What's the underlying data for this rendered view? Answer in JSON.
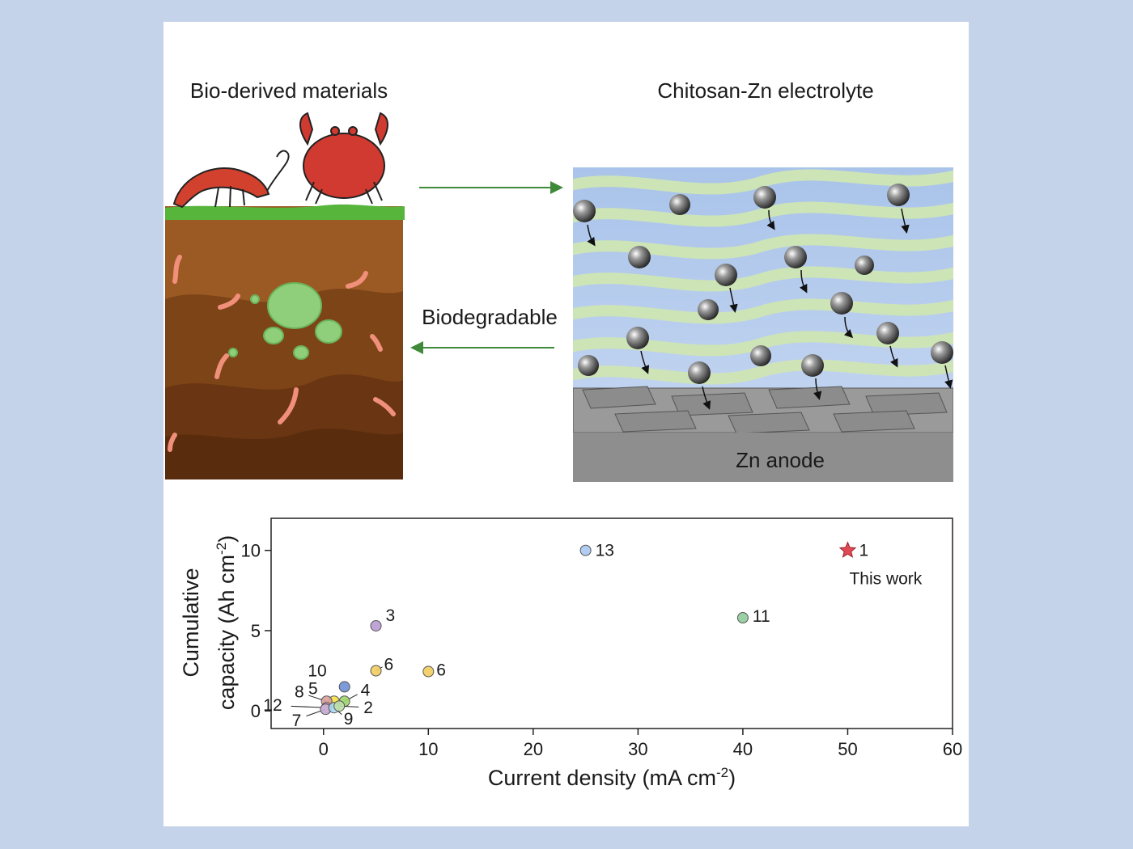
{
  "illustration": {
    "left_title": "Bio-derived materials",
    "right_title": "Chitosan-Zn electrolyte",
    "arrow_label": "Biodegradable",
    "anode_label": "Zn anode"
  },
  "chart_data": {
    "type": "scatter",
    "x_label": [
      "Current density (mA cm",
      "-2",
      ")"
    ],
    "y_label": [
      "Cumulative",
      "capacity (Ah cm",
      "-2",
      ")"
    ],
    "xlim": [
      -5,
      60
    ],
    "ylim": [
      -1.1,
      12
    ],
    "xticks": [
      0,
      10,
      20,
      30,
      40,
      50,
      60
    ],
    "yticks": [
      0,
      5,
      10
    ],
    "annotation": "This work",
    "points": [
      {
        "label": "1",
        "x": 50,
        "y": 10,
        "color": "#e04a55",
        "marker": "star"
      },
      {
        "label": "13",
        "x": 25,
        "y": 10,
        "color": "#a9c8ef",
        "marker": "circle"
      },
      {
        "label": "11",
        "x": 40,
        "y": 5.8,
        "color": "#8fcc9a",
        "marker": "circle"
      },
      {
        "label": "3",
        "x": 5,
        "y": 5.3,
        "color": "#b99ad0",
        "marker": "circle"
      },
      {
        "label": "6",
        "x": 5,
        "y": 2.5,
        "color": "#f2cc5e",
        "marker": "circle"
      },
      {
        "label": "6",
        "x": 10,
        "y": 2.45,
        "color": "#f2cc5e",
        "marker": "circle"
      },
      {
        "label": "10",
        "x": 2,
        "y": 1.5,
        "color": "#6f8fd6",
        "marker": "circle"
      },
      {
        "label": "4",
        "x": 2,
        "y": 0.6,
        "color": "#9dd46a",
        "marker": "circle"
      },
      {
        "label": "5",
        "x": 1,
        "y": 0.6,
        "color": "#f5e04a",
        "marker": "circle"
      },
      {
        "label": "8",
        "x": 0.3,
        "y": 0.6,
        "color": "#d9a0a0",
        "marker": "circle"
      },
      {
        "label": "12",
        "x": 0.3,
        "y": 0.2,
        "color": "#e3a3b0",
        "marker": "circle"
      },
      {
        "label": "7",
        "x": 0.2,
        "y": 0.1,
        "color": "#c9b0d8",
        "marker": "circle"
      },
      {
        "label": "9",
        "x": 1,
        "y": 0.2,
        "color": "#a8d8ef",
        "marker": "circle"
      },
      {
        "label": "2",
        "x": 1.5,
        "y": 0.3,
        "color": "#bfe0a8",
        "marker": "circle"
      }
    ]
  }
}
